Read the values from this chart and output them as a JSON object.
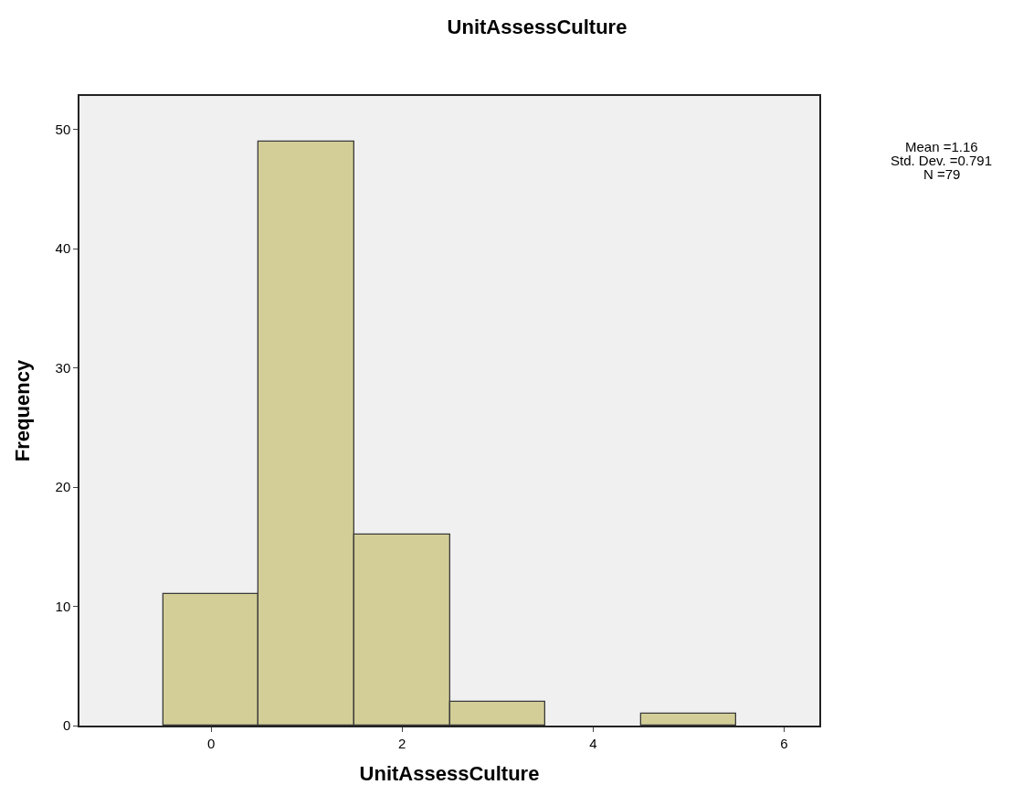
{
  "chart_data": {
    "type": "histogram",
    "title": "UnitAssessCulture",
    "xlabel": "UnitAssessCulture",
    "ylabel": "Frequency",
    "bins": [
      -0.5,
      0.5,
      1.5,
      2.5,
      3.5,
      4.5,
      5.5
    ],
    "values": [
      11,
      49,
      16,
      2,
      0,
      1
    ],
    "color": "#d3ce97",
    "xlim": [
      -1.38,
      6.37
    ],
    "xticks": [
      0,
      2,
      4,
      6
    ],
    "ylim": [
      0,
      52.8
    ],
    "yticks": [
      0,
      10,
      20,
      30,
      40,
      50
    ],
    "grid": false,
    "legend": false,
    "annotations": [
      "Mean =1.16",
      "Std. Dev. =0.791",
      "N =79"
    ]
  }
}
